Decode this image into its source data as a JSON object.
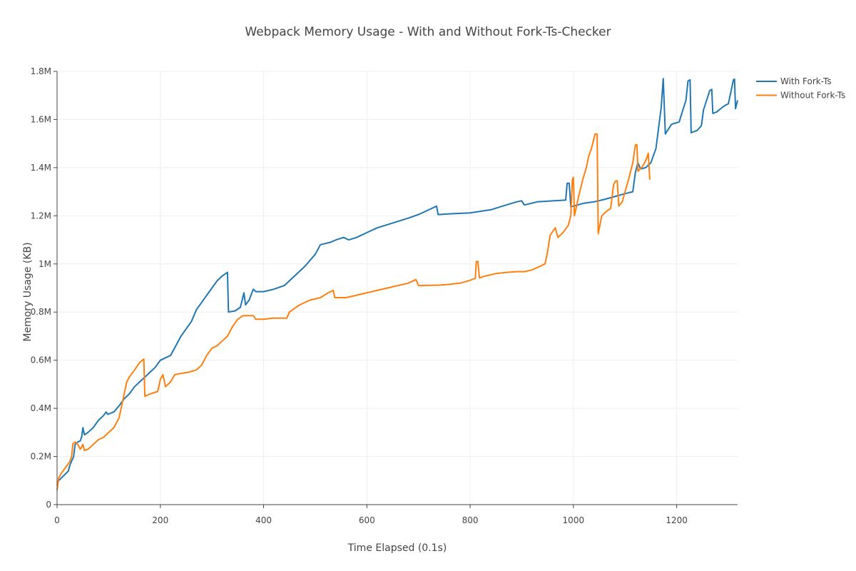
{
  "chart_data": {
    "type": "line",
    "title": "Webpack Memory Usage - With and Without Fork-Ts-Checker",
    "xlabel": "Time Elapsed (0.1s)",
    "ylabel": "Memory Usage (KB)",
    "xlim": [
      0,
      1318
    ],
    "ylim": [
      0,
      1800000
    ],
    "x_ticks": [
      0,
      200,
      400,
      600,
      800,
      1000,
      1200
    ],
    "x_tick_labels": [
      "0",
      "200",
      "400",
      "600",
      "800",
      "1000",
      "1200"
    ],
    "y_ticks": [
      0,
      200000,
      400000,
      600000,
      800000,
      1000000,
      1200000,
      1400000,
      1600000,
      1800000
    ],
    "y_tick_labels": [
      "0",
      "0.2M",
      "0.4M",
      "0.6M",
      "0.8M",
      "1M",
      "1.2M",
      "1.4M",
      "1.6M",
      "1.8M"
    ],
    "grid": true,
    "legend_position": "top-right",
    "series": [
      {
        "name": "With Fork-Ts",
        "color": "#1f77b4",
        "points": [
          [
            0,
            80000
          ],
          [
            3,
            100000
          ],
          [
            8,
            110000
          ],
          [
            15,
            125000
          ],
          [
            22,
            140000
          ],
          [
            25,
            165000
          ],
          [
            28,
            180000
          ],
          [
            32,
            200000
          ],
          [
            35,
            250000
          ],
          [
            40,
            260000
          ],
          [
            45,
            265000
          ],
          [
            48,
            285000
          ],
          [
            50,
            320000
          ],
          [
            53,
            290000
          ],
          [
            60,
            300000
          ],
          [
            70,
            320000
          ],
          [
            80,
            350000
          ],
          [
            90,
            370000
          ],
          [
            95,
            385000
          ],
          [
            98,
            375000
          ],
          [
            110,
            385000
          ],
          [
            120,
            410000
          ],
          [
            130,
            440000
          ],
          [
            140,
            460000
          ],
          [
            150,
            490000
          ],
          [
            160,
            510000
          ],
          [
            170,
            530000
          ],
          [
            180,
            550000
          ],
          [
            190,
            570000
          ],
          [
            200,
            600000
          ],
          [
            210,
            610000
          ],
          [
            220,
            620000
          ],
          [
            230,
            660000
          ],
          [
            240,
            700000
          ],
          [
            250,
            730000
          ],
          [
            260,
            760000
          ],
          [
            270,
            810000
          ],
          [
            280,
            840000
          ],
          [
            290,
            870000
          ],
          [
            300,
            900000
          ],
          [
            310,
            930000
          ],
          [
            320,
            950000
          ],
          [
            330,
            965000
          ],
          [
            332,
            800000
          ],
          [
            345,
            805000
          ],
          [
            355,
            820000
          ],
          [
            362,
            880000
          ],
          [
            365,
            830000
          ],
          [
            372,
            850000
          ],
          [
            380,
            895000
          ],
          [
            385,
            885000
          ],
          [
            400,
            885000
          ],
          [
            420,
            895000
          ],
          [
            440,
            910000
          ],
          [
            460,
            950000
          ],
          [
            480,
            990000
          ],
          [
            500,
            1040000
          ],
          [
            510,
            1080000
          ],
          [
            530,
            1090000
          ],
          [
            540,
            1100000
          ],
          [
            555,
            1110000
          ],
          [
            565,
            1100000
          ],
          [
            580,
            1110000
          ],
          [
            600,
            1130000
          ],
          [
            620,
            1150000
          ],
          [
            650,
            1170000
          ],
          [
            680,
            1190000
          ],
          [
            700,
            1205000
          ],
          [
            720,
            1225000
          ],
          [
            735,
            1240000
          ],
          [
            738,
            1205000
          ],
          [
            760,
            1208000
          ],
          [
            800,
            1212000
          ],
          [
            840,
            1225000
          ],
          [
            870,
            1245000
          ],
          [
            890,
            1258000
          ],
          [
            900,
            1262000
          ],
          [
            905,
            1245000
          ],
          [
            930,
            1258000
          ],
          [
            960,
            1262000
          ],
          [
            985,
            1265000
          ],
          [
            988,
            1335000
          ],
          [
            992,
            1335000
          ],
          [
            995,
            1238000
          ],
          [
            1000,
            1240000
          ],
          [
            1020,
            1252000
          ],
          [
            1040,
            1258000
          ],
          [
            1060,
            1268000
          ],
          [
            1080,
            1280000
          ],
          [
            1100,
            1292000
          ],
          [
            1115,
            1300000
          ],
          [
            1120,
            1380000
          ],
          [
            1125,
            1420000
          ],
          [
            1130,
            1395000
          ],
          [
            1140,
            1400000
          ],
          [
            1150,
            1420000
          ],
          [
            1160,
            1480000
          ],
          [
            1170,
            1650000
          ],
          [
            1174,
            1770000
          ],
          [
            1178,
            1540000
          ],
          [
            1190,
            1580000
          ],
          [
            1205,
            1590000
          ],
          [
            1212,
            1640000
          ],
          [
            1218,
            1680000
          ],
          [
            1222,
            1760000
          ],
          [
            1226,
            1765000
          ],
          [
            1228,
            1545000
          ],
          [
            1240,
            1555000
          ],
          [
            1248,
            1575000
          ],
          [
            1252,
            1640000
          ],
          [
            1258,
            1680000
          ],
          [
            1264,
            1720000
          ],
          [
            1268,
            1725000
          ],
          [
            1270,
            1625000
          ],
          [
            1278,
            1632000
          ],
          [
            1288,
            1650000
          ],
          [
            1295,
            1660000
          ],
          [
            1300,
            1665000
          ],
          [
            1305,
            1715000
          ],
          [
            1310,
            1765000
          ],
          [
            1312,
            1768000
          ],
          [
            1314,
            1645000
          ],
          [
            1318,
            1680000
          ]
        ]
      },
      {
        "name": "Without Fork-Ts",
        "color": "#ff7f0e",
        "points": [
          [
            0,
            60000
          ],
          [
            3,
            110000
          ],
          [
            8,
            130000
          ],
          [
            15,
            150000
          ],
          [
            20,
            165000
          ],
          [
            25,
            180000
          ],
          [
            28,
            200000
          ],
          [
            31,
            255000
          ],
          [
            35,
            260000
          ],
          [
            40,
            250000
          ],
          [
            45,
            230000
          ],
          [
            50,
            250000
          ],
          [
            53,
            225000
          ],
          [
            60,
            230000
          ],
          [
            70,
            250000
          ],
          [
            80,
            270000
          ],
          [
            90,
            280000
          ],
          [
            100,
            300000
          ],
          [
            110,
            320000
          ],
          [
            120,
            360000
          ],
          [
            130,
            460000
          ],
          [
            135,
            510000
          ],
          [
            140,
            530000
          ],
          [
            150,
            560000
          ],
          [
            160,
            590000
          ],
          [
            168,
            605000
          ],
          [
            170,
            450000
          ],
          [
            180,
            460000
          ],
          [
            195,
            470000
          ],
          [
            200,
            520000
          ],
          [
            205,
            540000
          ],
          [
            210,
            490000
          ],
          [
            220,
            510000
          ],
          [
            228,
            540000
          ],
          [
            240,
            545000
          ],
          [
            255,
            550000
          ],
          [
            270,
            560000
          ],
          [
            280,
            580000
          ],
          [
            290,
            620000
          ],
          [
            300,
            650000
          ],
          [
            310,
            660000
          ],
          [
            320,
            680000
          ],
          [
            330,
            700000
          ],
          [
            340,
            740000
          ],
          [
            350,
            770000
          ],
          [
            360,
            785000
          ],
          [
            380,
            785000
          ],
          [
            385,
            770000
          ],
          [
            400,
            770000
          ],
          [
            420,
            775000
          ],
          [
            445,
            775000
          ],
          [
            450,
            800000
          ],
          [
            470,
            830000
          ],
          [
            490,
            850000
          ],
          [
            510,
            860000
          ],
          [
            525,
            880000
          ],
          [
            535,
            890000
          ],
          [
            538,
            860000
          ],
          [
            560,
            860000
          ],
          [
            580,
            870000
          ],
          [
            600,
            880000
          ],
          [
            620,
            890000
          ],
          [
            640,
            900000
          ],
          [
            660,
            910000
          ],
          [
            680,
            920000
          ],
          [
            695,
            935000
          ],
          [
            700,
            910000
          ],
          [
            740,
            912000
          ],
          [
            760,
            915000
          ],
          [
            780,
            920000
          ],
          [
            800,
            932000
          ],
          [
            810,
            940000
          ],
          [
            812,
            1010000
          ],
          [
            815,
            1010000
          ],
          [
            818,
            942000
          ],
          [
            830,
            950000
          ],
          [
            850,
            960000
          ],
          [
            870,
            965000
          ],
          [
            890,
            968000
          ],
          [
            905,
            968000
          ],
          [
            920,
            975000
          ],
          [
            935,
            990000
          ],
          [
            945,
            1000000
          ],
          [
            950,
            1050000
          ],
          [
            955,
            1120000
          ],
          [
            965,
            1150000
          ],
          [
            970,
            1110000
          ],
          [
            980,
            1130000
          ],
          [
            990,
            1160000
          ],
          [
            995,
            1200000
          ],
          [
            998,
            1350000
          ],
          [
            1000,
            1360000
          ],
          [
            1002,
            1200000
          ],
          [
            1010,
            1280000
          ],
          [
            1018,
            1350000
          ],
          [
            1025,
            1400000
          ],
          [
            1030,
            1450000
          ],
          [
            1035,
            1480000
          ],
          [
            1042,
            1540000
          ],
          [
            1046,
            1540000
          ],
          [
            1048,
            1125000
          ],
          [
            1055,
            1200000
          ],
          [
            1065,
            1220000
          ],
          [
            1072,
            1230000
          ],
          [
            1078,
            1330000
          ],
          [
            1082,
            1345000
          ],
          [
            1085,
            1345000
          ],
          [
            1088,
            1240000
          ],
          [
            1095,
            1260000
          ],
          [
            1100,
            1300000
          ],
          [
            1108,
            1360000
          ],
          [
            1115,
            1420000
          ],
          [
            1120,
            1495000
          ],
          [
            1123,
            1495000
          ],
          [
            1125,
            1385000
          ],
          [
            1132,
            1400000
          ],
          [
            1138,
            1420000
          ],
          [
            1142,
            1440000
          ],
          [
            1145,
            1460000
          ],
          [
            1148,
            1350000
          ]
        ]
      }
    ]
  }
}
